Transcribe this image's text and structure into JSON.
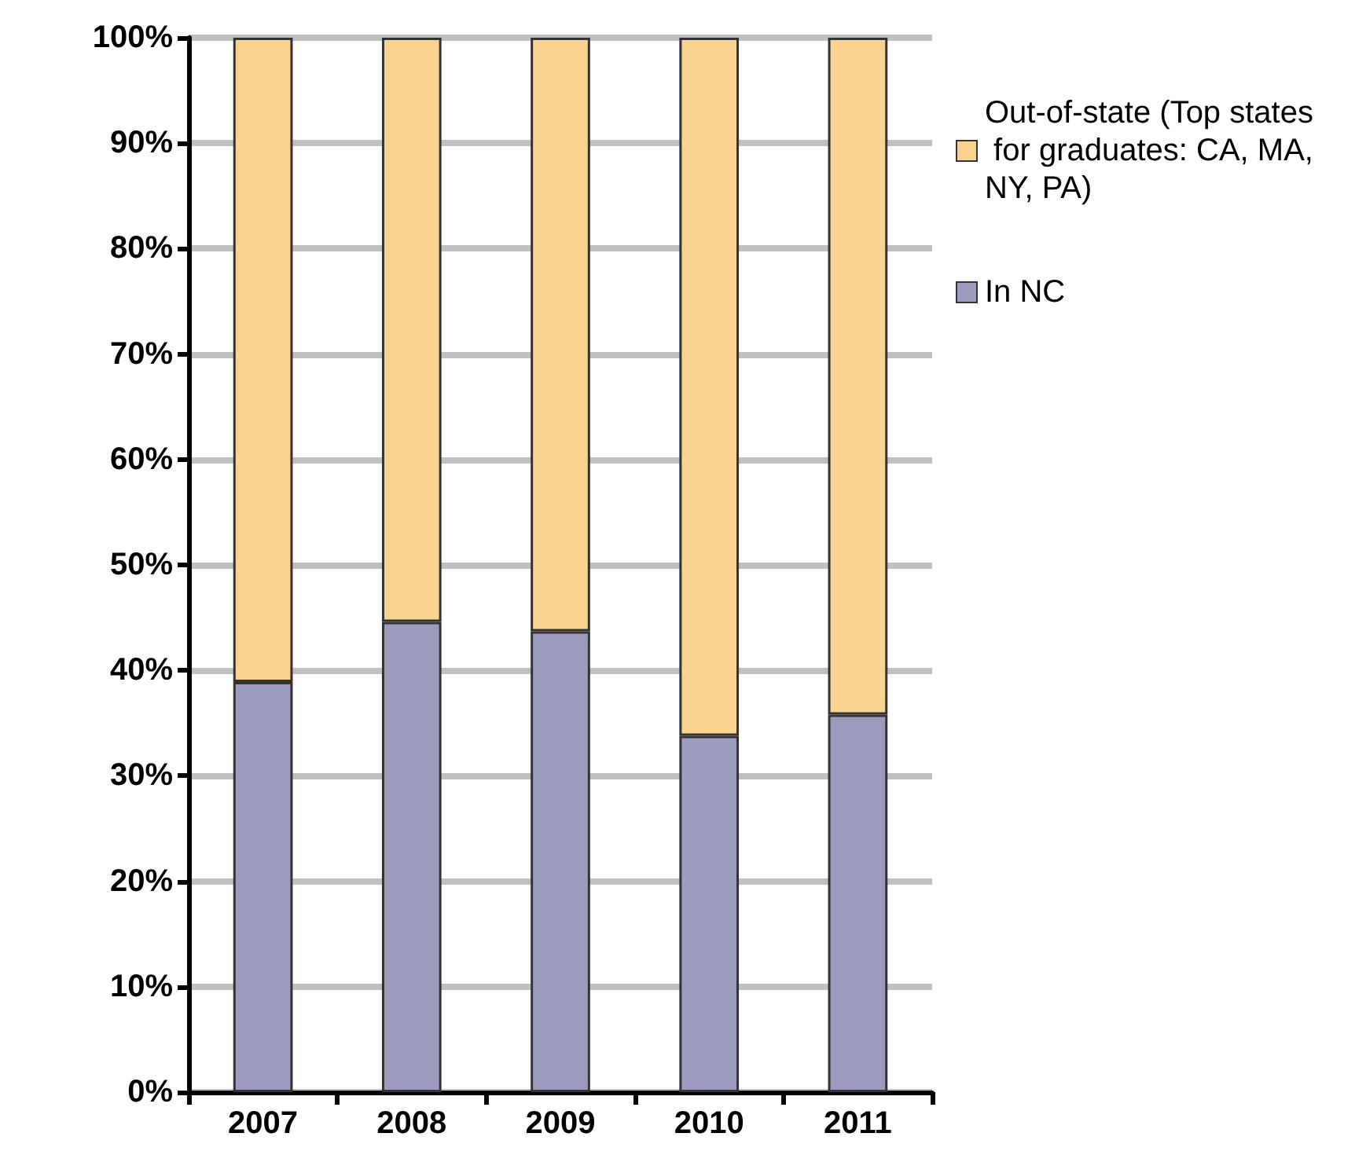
{
  "chart_data": {
    "type": "bar",
    "stacked": true,
    "categories": [
      "2007",
      "2008",
      "2009",
      "2010",
      "2011"
    ],
    "series": [
      {
        "name": "In NC",
        "color": "#9b9bbd",
        "values": [
          38.9,
          44.6,
          43.7,
          33.8,
          35.8
        ]
      },
      {
        "name": "Out-of-state (Top states for graduates: CA, MA, NY, PA)",
        "color": "#f9d38f",
        "values": [
          61.1,
          55.4,
          56.3,
          66.2,
          64.2
        ]
      }
    ],
    "ylim": [
      0,
      100
    ],
    "yticks": [
      {
        "value": 0,
        "label": "0%"
      },
      {
        "value": 10,
        "label": "10%"
      },
      {
        "value": 20,
        "label": "20%"
      },
      {
        "value": 30,
        "label": "30%"
      },
      {
        "value": 40,
        "label": "40%"
      },
      {
        "value": 50,
        "label": "50%"
      },
      {
        "value": 60,
        "label": "60%"
      },
      {
        "value": 70,
        "label": "70%"
      },
      {
        "value": 80,
        "label": "80%"
      },
      {
        "value": 90,
        "label": "90%"
      },
      {
        "value": 100,
        "label": "100%"
      }
    ],
    "grid": "y",
    "legend": "right"
  }
}
